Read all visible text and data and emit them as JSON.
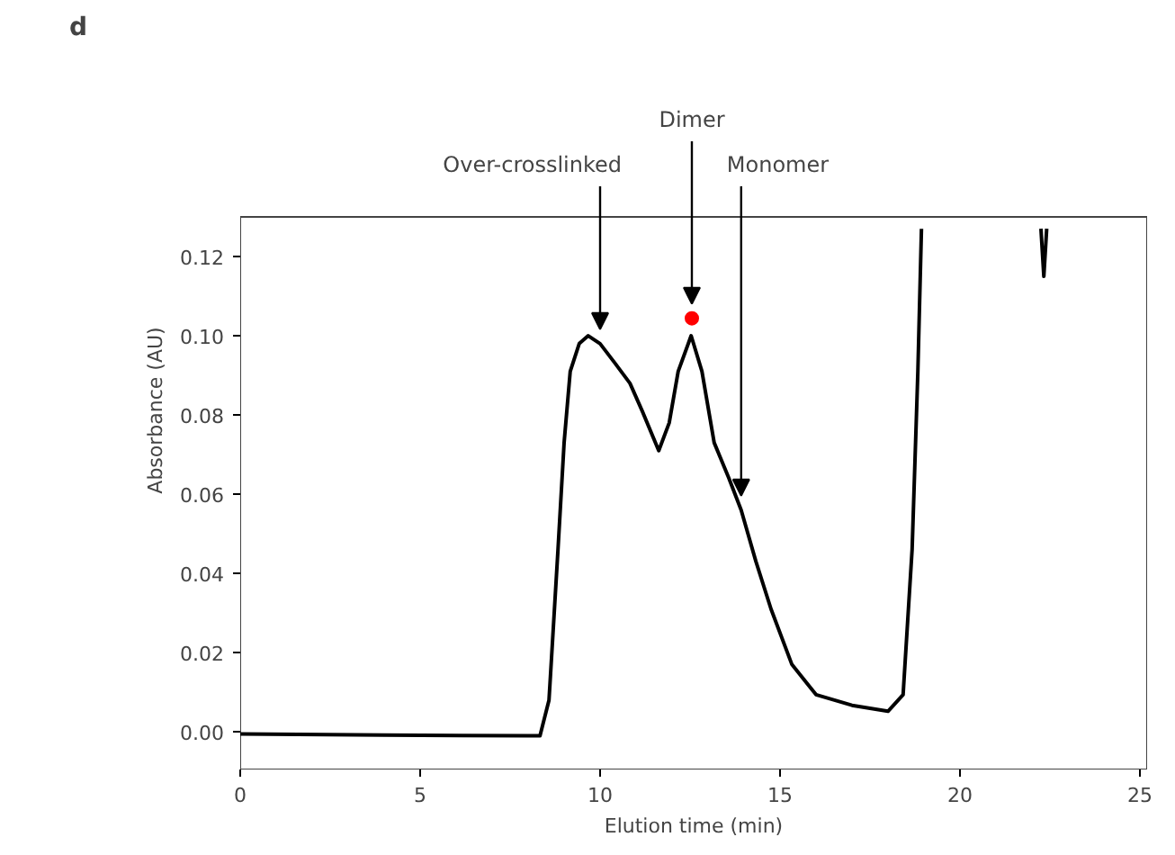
{
  "chart_data": {
    "type": "line",
    "xlabel": "Elution time (min)",
    "ylabel": "Absorbance (AU)",
    "xlim": [
      0,
      25.2
    ],
    "ylim": [
      -0.0095,
      0.13
    ],
    "xticks": [
      0,
      5,
      10,
      15,
      20,
      25
    ],
    "yticks": [
      {
        "value": 0,
        "label": "0.00"
      },
      {
        "value": 0.02,
        "label": "0.02"
      },
      {
        "value": 0.04,
        "label": "0.04"
      },
      {
        "value": 0.06,
        "label": "0.06"
      },
      {
        "value": 0.08,
        "label": "0.08"
      },
      {
        "value": 0.1,
        "label": "0.10"
      },
      {
        "value": 0.12,
        "label": "0.12"
      }
    ],
    "grid": false,
    "series": [
      {
        "color": "#000000",
        "x": [
          0,
          4,
          8.0,
          8.33,
          8.58,
          8.83,
          9.0,
          9.17,
          9.42,
          9.67,
          10.0,
          10.42,
          10.83,
          11.17,
          11.63,
          11.92,
          12.17,
          12.53,
          12.83,
          13.17,
          13.58,
          13.92,
          14.33,
          14.75,
          15.33,
          16.0,
          17.0,
          18.0,
          18.42,
          18.67,
          18.83,
          18.93,
          20.5,
          22.25,
          22.33,
          22.41
        ],
        "values": [
          -0.0005,
          -0.0008,
          -0.001,
          -0.001,
          0.008,
          0.046,
          0.073,
          0.091,
          0.098,
          0.1,
          0.098,
          0.093,
          0.088,
          0.081,
          0.071,
          0.078,
          0.091,
          0.1,
          0.091,
          0.073,
          0.064,
          0.056,
          0.043,
          0.031,
          0.017,
          0.0094,
          0.0067,
          0.0052,
          0.0094,
          0.046,
          0.091,
          0.127,
          null,
          0.127,
          0.115,
          0.127
        ]
      },
      {
        "type": "scatter",
        "color": "#ff0000",
        "marker": "circle",
        "x": [
          12.55
        ],
        "values": [
          0.1044
        ]
      }
    ],
    "annotations": [
      "d",
      {
        "text": "Over-crosslinked",
        "x": 10.0,
        "y": 0.098
      },
      {
        "text": "Dimer",
        "x": 12.55,
        "y": 0.1044
      },
      {
        "text": "Monomer",
        "x": 13.92,
        "y": 0.056
      }
    ]
  }
}
